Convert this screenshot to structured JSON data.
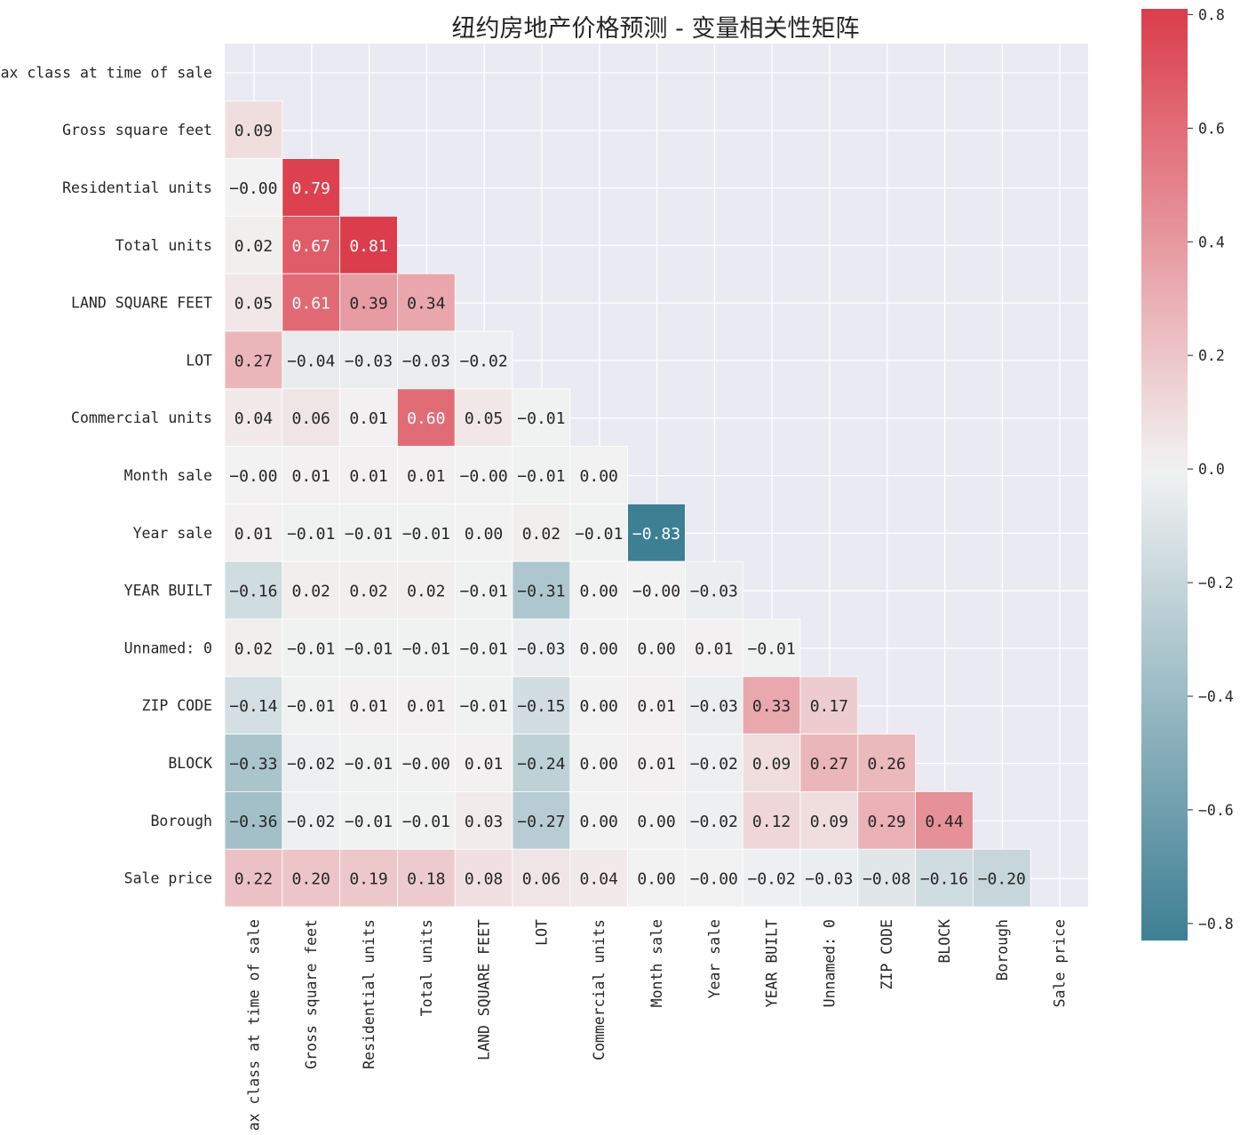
{
  "chart_data": {
    "type": "heatmap",
    "title": "纽约房地产价格预测 - 变量相关性矩阵",
    "variables": [
      "Tax class at time of sale",
      "Gross square feet",
      "Residential units",
      "Total units",
      "LAND SQUARE FEET",
      "LOT",
      "Commercial units",
      "Month sale",
      "Year sale",
      "YEAR BUILT",
      "Unnamed: 0",
      "ZIP CODE",
      "BLOCK",
      "Borough",
      "Sale price"
    ],
    "masked": "upper-triangle-and-diagonal",
    "matrix": [
      [],
      [
        0.09
      ],
      [
        -0.0,
        0.79
      ],
      [
        0.02,
        0.67,
        0.81
      ],
      [
        0.05,
        0.61,
        0.39,
        0.34
      ],
      [
        0.27,
        -0.04,
        -0.03,
        -0.03,
        -0.02
      ],
      [
        0.04,
        0.06,
        0.01,
        0.6,
        0.05,
        -0.01
      ],
      [
        -0.0,
        0.01,
        0.01,
        0.01,
        -0.0,
        -0.01,
        0.0
      ],
      [
        0.01,
        -0.01,
        -0.01,
        -0.01,
        0.0,
        0.02,
        -0.01,
        -0.83
      ],
      [
        -0.16,
        0.02,
        0.02,
        0.02,
        -0.01,
        -0.31,
        0.0,
        -0.0,
        -0.03
      ],
      [
        0.02,
        -0.01,
        -0.01,
        -0.01,
        -0.01,
        -0.03,
        0.0,
        0.0,
        0.01,
        -0.01
      ],
      [
        -0.14,
        -0.01,
        0.01,
        0.01,
        -0.01,
        -0.15,
        0.0,
        0.01,
        -0.03,
        0.33,
        0.17
      ],
      [
        -0.33,
        -0.02,
        -0.01,
        -0.0,
        0.01,
        -0.24,
        0.0,
        0.01,
        -0.02,
        0.09,
        0.27,
        0.26
      ],
      [
        -0.36,
        -0.02,
        -0.01,
        -0.01,
        0.03,
        -0.27,
        0.0,
        0.0,
        -0.02,
        0.12,
        0.09,
        0.29,
        0.44
      ],
      [
        0.22,
        0.2,
        0.19,
        0.18,
        0.08,
        0.06,
        0.04,
        0.0,
        -0.0,
        -0.02,
        -0.03,
        -0.08,
        -0.16,
        -0.2
      ]
    ],
    "value_format": "2 decimals",
    "colorbar": {
      "range": [
        -0.83,
        0.81
      ],
      "ticks": [
        -0.8,
        -0.6,
        -0.4,
        -0.2,
        0.0,
        0.2,
        0.4,
        0.6,
        0.8
      ],
      "tick_labels": [
        "−0.8",
        "−0.6",
        "−0.4",
        "−0.2",
        "0.0",
        "0.2",
        "0.4",
        "0.6",
        "0.8"
      ],
      "color_negative": "#3d7f93",
      "color_zero": "#f2f2f2",
      "color_positive": "#dc3d4b"
    },
    "background_color": "#eaeaf2",
    "grid": true
  }
}
